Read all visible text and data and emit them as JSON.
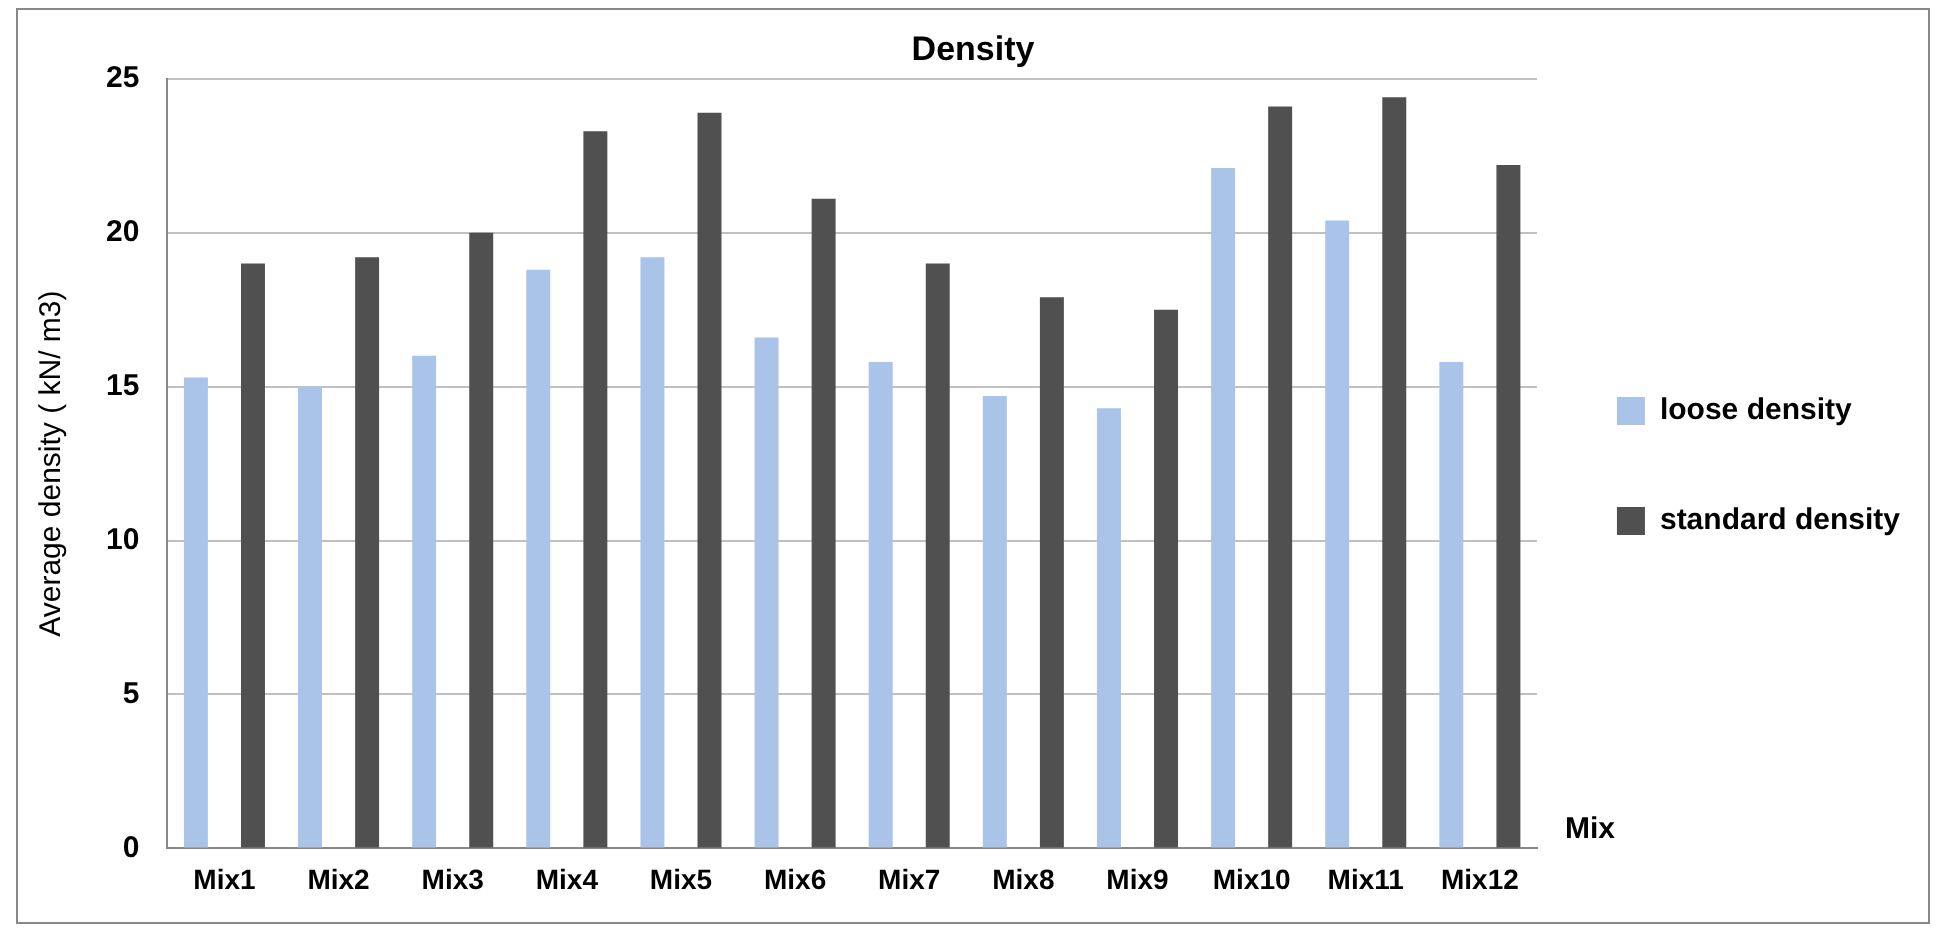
{
  "chart_data": {
    "type": "bar",
    "title": "Density",
    "xlabel": "Mix",
    "ylabel": "Average density ( kN/ m3)",
    "categories": [
      "Mix1",
      "Mix2",
      "Mix3",
      "Mix4",
      "Mix5",
      "Mix6",
      "Mix7",
      "Mix8",
      "Mix9",
      "Mix10",
      "Mix11",
      "Mix12"
    ],
    "series": [
      {
        "name": "loose density",
        "color": "#a9c4e8",
        "values": [
          15.3,
          15.0,
          16.0,
          18.8,
          19.2,
          16.6,
          15.8,
          14.7,
          14.3,
          22.1,
          20.4,
          15.8
        ]
      },
      {
        "name": "standard density",
        "color": "#505050",
        "values": [
          19.0,
          19.2,
          20.0,
          23.3,
          23.9,
          21.1,
          19.0,
          17.9,
          17.5,
          24.1,
          24.4,
          22.2
        ]
      }
    ],
    "ylim": [
      0,
      25
    ],
    "yticks": [
      0,
      5,
      10,
      15,
      20,
      25
    ],
    "grid": "y",
    "legend": "right"
  }
}
